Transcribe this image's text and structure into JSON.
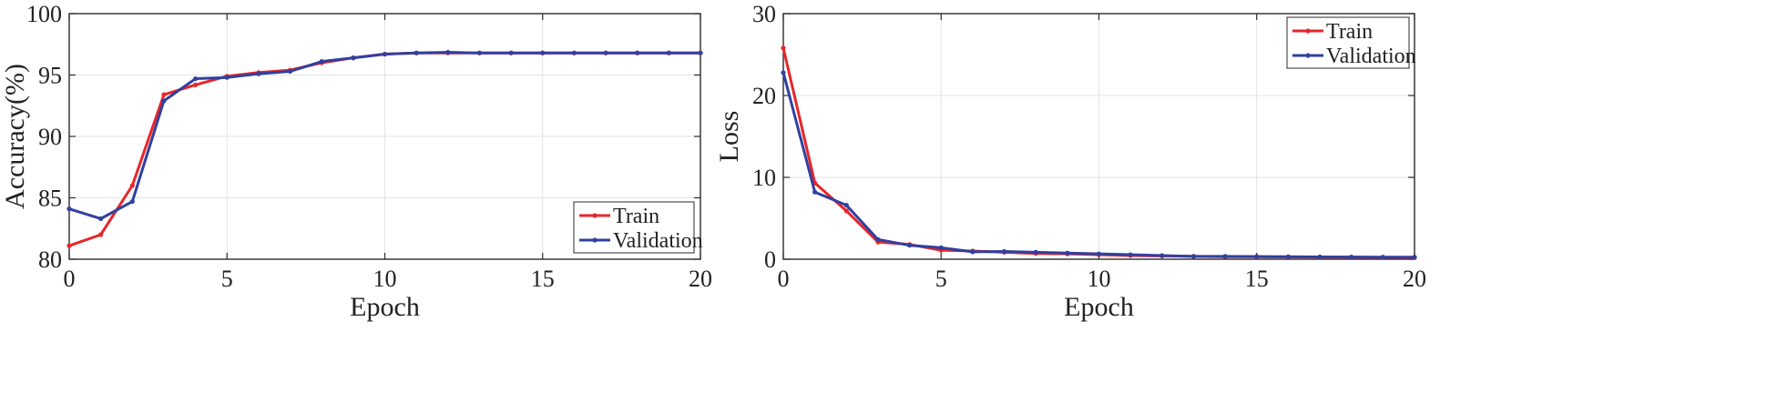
{
  "chart_data": [
    {
      "type": "line",
      "title": "",
      "xlabel": "Epoch",
      "ylabel": "Accuracy(%)",
      "xlim": [
        0,
        20
      ],
      "ylim": [
        80,
        100
      ],
      "xticks": [
        0,
        5,
        10,
        15,
        20
      ],
      "yticks": [
        80,
        85,
        90,
        95,
        100
      ],
      "xtick_labels": [
        "0",
        "5",
        "10",
        "15",
        "20"
      ],
      "ytick_labels": [
        "80",
        "85",
        "90",
        "95",
        "100"
      ],
      "grid": true,
      "legend": "bottom-right",
      "x": [
        0,
        1,
        2,
        3,
        4,
        5,
        6,
        7,
        8,
        9,
        10,
        11,
        12,
        13,
        14,
        15,
        16,
        17,
        18,
        19,
        20
      ],
      "series": [
        {
          "name": "Train",
          "color": "#e8262a",
          "values": [
            81.1,
            82.0,
            86.0,
            93.4,
            94.2,
            94.9,
            95.2,
            95.4,
            96.0,
            96.4,
            96.7,
            96.8,
            96.8,
            96.8,
            96.8,
            96.8,
            96.8,
            96.8,
            96.8,
            96.8,
            96.8
          ]
        },
        {
          "name": "Validation",
          "color": "#3040a0",
          "values": [
            84.1,
            83.3,
            84.7,
            92.9,
            94.7,
            94.8,
            95.1,
            95.3,
            96.1,
            96.4,
            96.7,
            96.8,
            96.85,
            96.8,
            96.8,
            96.8,
            96.8,
            96.8,
            96.8,
            96.8,
            96.8
          ]
        }
      ]
    },
    {
      "type": "line",
      "title": "",
      "xlabel": "Epoch",
      "ylabel": "Loss",
      "xlim": [
        0,
        20
      ],
      "ylim": [
        0,
        30
      ],
      "xticks": [
        0,
        5,
        10,
        15,
        20
      ],
      "yticks": [
        0,
        10,
        20,
        30
      ],
      "xtick_labels": [
        "0",
        "5",
        "10",
        "15",
        "20"
      ],
      "ytick_labels": [
        "0",
        "10",
        "20",
        "30"
      ],
      "grid": true,
      "legend": "top-right",
      "x": [
        0,
        1,
        2,
        3,
        4,
        5,
        6,
        7,
        8,
        9,
        10,
        11,
        12,
        13,
        14,
        15,
        16,
        17,
        18,
        19,
        20
      ],
      "series": [
        {
          "name": "Train",
          "color": "#e8262a",
          "values": [
            25.8,
            9.3,
            5.9,
            2.1,
            1.8,
            1.1,
            1.0,
            0.85,
            0.7,
            0.65,
            0.55,
            0.45,
            0.4,
            0.35,
            0.3,
            0.3,
            0.28,
            0.25,
            0.25,
            0.22,
            0.2
          ]
        },
        {
          "name": "Validation",
          "color": "#3040a0",
          "values": [
            22.8,
            8.2,
            6.6,
            2.4,
            1.7,
            1.4,
            0.9,
            0.95,
            0.85,
            0.75,
            0.65,
            0.55,
            0.45,
            0.35,
            0.35,
            0.32,
            0.3,
            0.28,
            0.27,
            0.25,
            0.25
          ]
        }
      ]
    }
  ]
}
